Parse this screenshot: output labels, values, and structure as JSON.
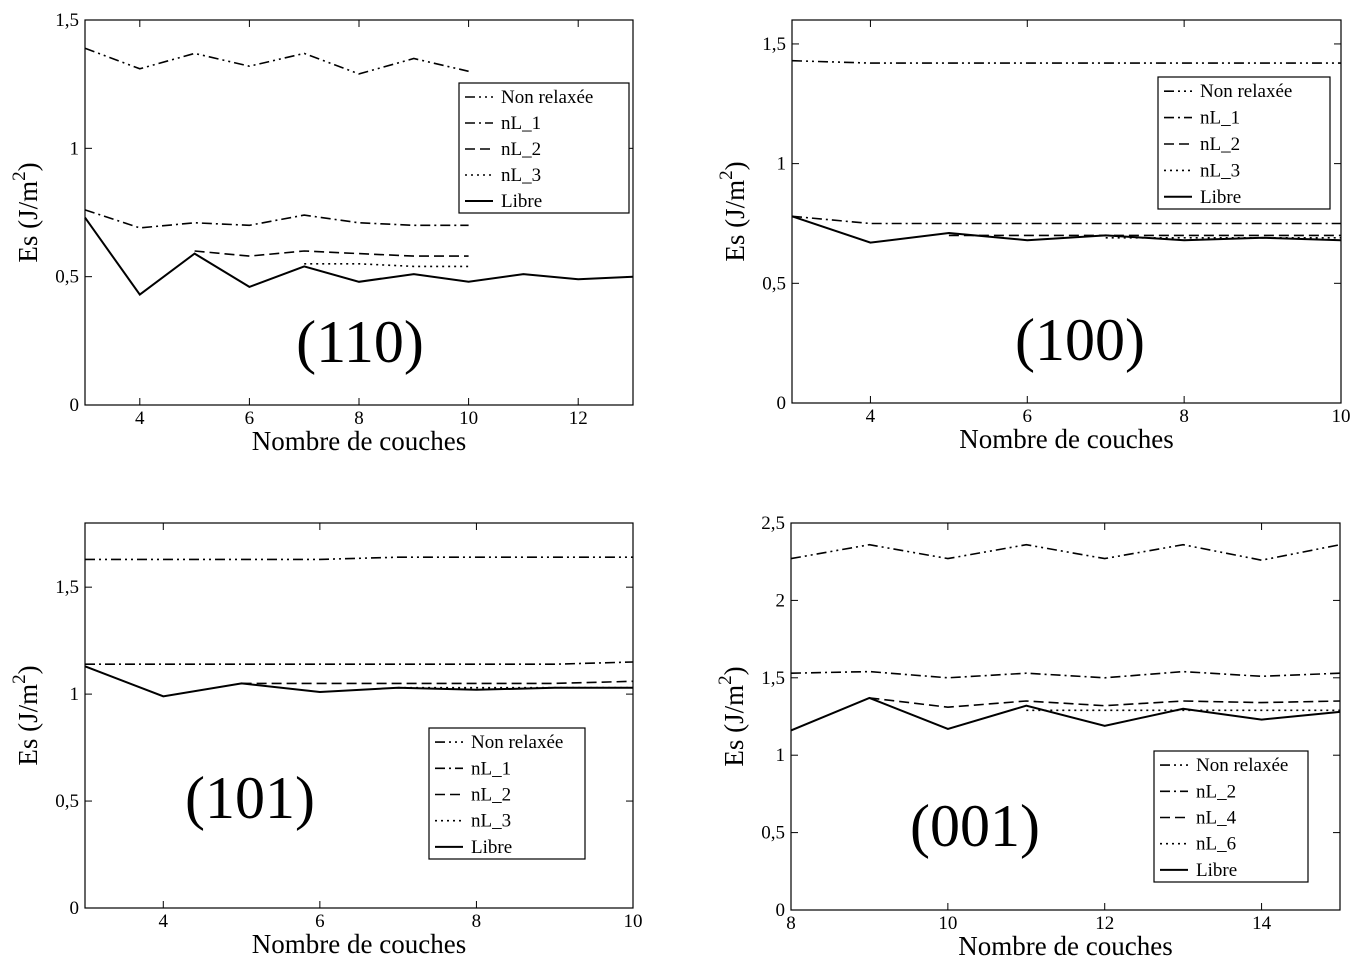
{
  "chart_data": [
    {
      "type": "line",
      "title": "",
      "panel_label": "(110)",
      "xlabel": "Nombre de couches",
      "ylabel": "Es (J/m",
      "ylabel_sup": "2",
      "ylabel_close": ")",
      "xlim": [
        3,
        13
      ],
      "ylim": [
        0,
        1.5
      ],
      "xticks": [
        4,
        6,
        8,
        10,
        12
      ],
      "xtick_labels": [
        "4",
        "6",
        "8",
        "10",
        "12"
      ],
      "yticks": [
        0,
        0.5,
        1,
        1.5
      ],
      "ytick_labels": [
        "0",
        "0,5",
        "1",
        "1,5"
      ],
      "grid": false,
      "legend_position": "top-right",
      "series": [
        {
          "name": "Non relaxée",
          "style": "dashdotdot",
          "x": [
            3,
            4,
            5,
            6,
            7,
            8,
            9,
            10
          ],
          "y": [
            1.39,
            1.31,
            1.37,
            1.32,
            1.37,
            1.29,
            1.35,
            1.3
          ]
        },
        {
          "name": "nL_1",
          "style": "dashdot",
          "x": [
            3,
            4,
            5,
            6,
            7,
            8,
            9,
            10
          ],
          "y": [
            0.76,
            0.69,
            0.71,
            0.7,
            0.74,
            0.71,
            0.7,
            0.7
          ]
        },
        {
          "name": "nL_2",
          "style": "dashed",
          "x": [
            5,
            6,
            7,
            8,
            9,
            10
          ],
          "y": [
            0.6,
            0.58,
            0.6,
            0.59,
            0.58,
            0.58
          ]
        },
        {
          "name": "nL_3",
          "style": "dotted",
          "x": [
            7,
            8,
            9,
            10
          ],
          "y": [
            0.55,
            0.55,
            0.54,
            0.54
          ]
        },
        {
          "name": "Libre",
          "style": "solid",
          "x": [
            3,
            4,
            5,
            6,
            7,
            8,
            9,
            10,
            11,
            12,
            13
          ],
          "y": [
            0.73,
            0.43,
            0.59,
            0.46,
            0.54,
            0.48,
            0.51,
            0.48,
            0.51,
            0.49,
            0.5
          ]
        }
      ]
    },
    {
      "type": "line",
      "title": "",
      "panel_label": "(100)",
      "xlabel": "Nombre de couches",
      "ylabel": "Es (J/m",
      "ylabel_sup": "2",
      "ylabel_close": ")",
      "xlim": [
        3,
        10
      ],
      "ylim": [
        0,
        1.6
      ],
      "xticks": [
        4,
        6,
        8,
        10
      ],
      "xtick_labels": [
        "4",
        "6",
        "8",
        "10"
      ],
      "yticks": [
        0,
        0.5,
        1,
        1.5
      ],
      "ytick_labels": [
        "0",
        "0,5",
        "1",
        "1,5"
      ],
      "grid": false,
      "legend_position": "top-right",
      "series": [
        {
          "name": "Non relaxée",
          "style": "dashdotdot",
          "x": [
            3,
            4,
            5,
            6,
            7,
            8,
            9,
            10
          ],
          "y": [
            1.43,
            1.42,
            1.42,
            1.42,
            1.42,
            1.42,
            1.42,
            1.42
          ]
        },
        {
          "name": "nL_1",
          "style": "dashdot",
          "x": [
            3,
            4,
            5,
            6,
            7,
            8,
            9,
            10
          ],
          "y": [
            0.78,
            0.75,
            0.75,
            0.75,
            0.75,
            0.75,
            0.75,
            0.75
          ]
        },
        {
          "name": "nL_2",
          "style": "dashed",
          "x": [
            5,
            6,
            7,
            8,
            9,
            10
          ],
          "y": [
            0.7,
            0.7,
            0.7,
            0.7,
            0.7,
            0.7
          ]
        },
        {
          "name": "nL_3",
          "style": "dotted",
          "x": [
            7,
            8,
            9,
            10
          ],
          "y": [
            0.69,
            0.69,
            0.69,
            0.69
          ]
        },
        {
          "name": "Libre",
          "style": "solid",
          "x": [
            3,
            4,
            5,
            6,
            7,
            8,
            9,
            10
          ],
          "y": [
            0.78,
            0.67,
            0.71,
            0.68,
            0.7,
            0.68,
            0.69,
            0.68
          ]
        }
      ]
    },
    {
      "type": "line",
      "title": "",
      "panel_label": "(101)",
      "xlabel": "Nombre de couches",
      "ylabel": "Es (J/m",
      "ylabel_sup": "2",
      "ylabel_close": ")",
      "xlim": [
        3,
        10
      ],
      "ylim": [
        0,
        1.8
      ],
      "xticks": [
        4,
        6,
        8,
        10
      ],
      "xtick_labels": [
        "4",
        "6",
        "8",
        "10"
      ],
      "yticks": [
        0,
        0.5,
        1,
        1.5
      ],
      "ytick_labels": [
        "0",
        "0,5",
        "1",
        "1,5"
      ],
      "grid": false,
      "legend_position": "bottom-right",
      "series": [
        {
          "name": "Non relaxée",
          "style": "dashdotdot",
          "x": [
            3,
            4,
            5,
            6,
            7,
            8,
            9,
            10
          ],
          "y": [
            1.63,
            1.63,
            1.63,
            1.63,
            1.64,
            1.64,
            1.64,
            1.64
          ]
        },
        {
          "name": "nL_1",
          "style": "dashdot",
          "x": [
            3,
            4,
            5,
            6,
            7,
            8,
            9,
            10
          ],
          "y": [
            1.14,
            1.14,
            1.14,
            1.14,
            1.14,
            1.14,
            1.14,
            1.15
          ]
        },
        {
          "name": "nL_2",
          "style": "dashed",
          "x": [
            5,
            6,
            7,
            8,
            9,
            10
          ],
          "y": [
            1.05,
            1.05,
            1.05,
            1.05,
            1.05,
            1.06
          ]
        },
        {
          "name": "nL_3",
          "style": "dotted",
          "x": [
            7,
            8,
            9,
            10
          ],
          "y": [
            1.03,
            1.03,
            1.03,
            1.03
          ]
        },
        {
          "name": "Libre",
          "style": "solid",
          "x": [
            3,
            4,
            5,
            6,
            7,
            8,
            9,
            10
          ],
          "y": [
            1.13,
            0.99,
            1.05,
            1.01,
            1.03,
            1.02,
            1.03,
            1.03
          ]
        }
      ]
    },
    {
      "type": "line",
      "title": "",
      "panel_label": "(001)",
      "xlabel": "Nombre de couches",
      "ylabel": "Es (J/m",
      "ylabel_sup": "2",
      "ylabel_close": ")",
      "xlim": [
        8,
        15
      ],
      "ylim": [
        0,
        2.5
      ],
      "xticks": [
        8,
        10,
        12,
        14
      ],
      "xtick_labels": [
        "8",
        "10",
        "12",
        "14"
      ],
      "yticks": [
        0,
        0.5,
        1,
        1.5,
        2,
        2.5
      ],
      "ytick_labels": [
        "0",
        "0,5",
        "1",
        "1,5",
        "2",
        "2,5"
      ],
      "grid": false,
      "legend_position": "bottom-right",
      "series": [
        {
          "name": "Non relaxée",
          "style": "dashdotdot",
          "x": [
            8,
            9,
            10,
            11,
            12,
            13,
            14,
            15
          ],
          "y": [
            2.27,
            2.36,
            2.27,
            2.36,
            2.27,
            2.36,
            2.26,
            2.36
          ]
        },
        {
          "name": "nL_2",
          "style": "dashdot",
          "x": [
            8,
            9,
            10,
            11,
            12,
            13,
            14,
            15
          ],
          "y": [
            1.53,
            1.54,
            1.5,
            1.53,
            1.5,
            1.54,
            1.51,
            1.53
          ]
        },
        {
          "name": "nL_4",
          "style": "dashed",
          "x": [
            9,
            10,
            11,
            12,
            13,
            14,
            15
          ],
          "y": [
            1.37,
            1.31,
            1.35,
            1.32,
            1.35,
            1.34,
            1.35
          ]
        },
        {
          "name": "nL_6",
          "style": "dotted",
          "x": [
            11,
            12,
            13,
            14,
            15
          ],
          "y": [
            1.29,
            1.29,
            1.29,
            1.29,
            1.29
          ]
        },
        {
          "name": "Libre",
          "style": "solid",
          "x": [
            8,
            9,
            10,
            11,
            12,
            13,
            14,
            15
          ],
          "y": [
            1.16,
            1.37,
            1.17,
            1.32,
            1.19,
            1.3,
            1.23,
            1.28
          ]
        }
      ]
    }
  ]
}
